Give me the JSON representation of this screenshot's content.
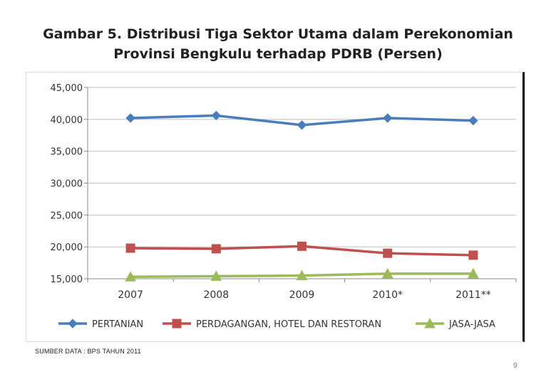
{
  "title": {
    "line1": "Gambar 5. Distribusi Tiga Sektor Utama dalam Perekonomian",
    "line2": "Provinsi Bengkulu terhadap PDRB (Persen)"
  },
  "source_note": "SUMBER DATA : BPS TAHUN 2011",
  "page_number": "9",
  "chart_data": {
    "type": "line",
    "categories": [
      "2007",
      "2008",
      "2009",
      "2010*",
      "2011**"
    ],
    "yticks": [
      "45,000",
      "40,000",
      "35,000",
      "30,000",
      "25,000",
      "20,000",
      "15,000"
    ],
    "ylim": [
      15,
      45
    ],
    "grid": true,
    "legend_position": "bottom",
    "series": [
      {
        "name": "PERTANIAN",
        "values": [
          40.2,
          40.6,
          39.1,
          40.2,
          39.8
        ],
        "color": "#4a7ebb",
        "marker": "diamond"
      },
      {
        "name": "PERDAGANGAN, HOTEL DAN RESTORAN",
        "values": [
          19.8,
          19.7,
          20.1,
          19.0,
          18.7
        ],
        "color": "#c0504d",
        "marker": "square"
      },
      {
        "name": "JASA-JASA",
        "values": [
          15.3,
          15.4,
          15.5,
          15.8,
          15.8
        ],
        "color": "#9bbb59",
        "marker": "triangle"
      }
    ]
  }
}
